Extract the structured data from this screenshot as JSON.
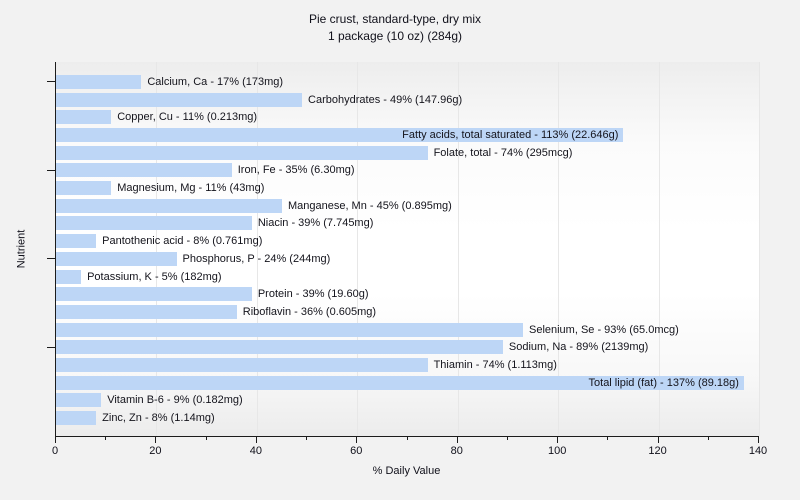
{
  "title": {
    "line1": "Pie crust, standard-type, dry mix",
    "line2": "1 package (10 oz) (284g)"
  },
  "chart_data": {
    "type": "bar",
    "orientation": "horizontal",
    "title": "Pie crust, standard-type, dry mix",
    "subtitle": "1 package (10 oz) (284g)",
    "xlabel": "% Daily Value",
    "ylabel": "Nutrient",
    "xlim": [
      0,
      140
    ],
    "x_major_ticks": [
      0,
      20,
      40,
      60,
      80,
      100,
      120,
      140
    ],
    "x_minor_ticks": [
      10,
      30,
      50,
      70,
      90,
      110,
      130
    ],
    "grid": "vertical-major",
    "legend": "none",
    "bar_color": "#bdd6f6",
    "label_inside_threshold_percent": 100,
    "y_major_tick_rows": [
      0,
      5,
      10,
      15
    ],
    "bars": [
      {
        "nutrient": "Calcium, Ca",
        "percent": 17,
        "amount": "173mg",
        "label": "Calcium, Ca - 17% (173mg)"
      },
      {
        "nutrient": "Carbohydrates",
        "percent": 49,
        "amount": "147.96g",
        "label": "Carbohydrates - 49% (147.96g)"
      },
      {
        "nutrient": "Copper, Cu",
        "percent": 11,
        "amount": "0.213mg",
        "label": "Copper, Cu - 11% (0.213mg)"
      },
      {
        "nutrient": "Fatty acids, total saturated",
        "percent": 113,
        "amount": "22.646g",
        "label": "Fatty acids, total saturated - 113% (22.646g)"
      },
      {
        "nutrient": "Folate, total",
        "percent": 74,
        "amount": "295mcg",
        "label": "Folate, total - 74% (295mcg)"
      },
      {
        "nutrient": "Iron, Fe",
        "percent": 35,
        "amount": "6.30mg",
        "label": "Iron, Fe - 35% (6.30mg)"
      },
      {
        "nutrient": "Magnesium, Mg",
        "percent": 11,
        "amount": "43mg",
        "label": "Magnesium, Mg - 11% (43mg)"
      },
      {
        "nutrient": "Manganese, Mn",
        "percent": 45,
        "amount": "0.895mg",
        "label": "Manganese, Mn - 45% (0.895mg)"
      },
      {
        "nutrient": "Niacin",
        "percent": 39,
        "amount": "7.745mg",
        "label": "Niacin - 39% (7.745mg)"
      },
      {
        "nutrient": "Pantothenic acid",
        "percent": 8,
        "amount": "0.761mg",
        "label": "Pantothenic acid - 8% (0.761mg)"
      },
      {
        "nutrient": "Phosphorus, P",
        "percent": 24,
        "amount": "244mg",
        "label": "Phosphorus, P - 24% (244mg)"
      },
      {
        "nutrient": "Potassium, K",
        "percent": 5,
        "amount": "182mg",
        "label": "Potassium, K - 5% (182mg)"
      },
      {
        "nutrient": "Protein",
        "percent": 39,
        "amount": "19.60g",
        "label": "Protein - 39% (19.60g)"
      },
      {
        "nutrient": "Riboflavin",
        "percent": 36,
        "amount": "0.605mg",
        "label": "Riboflavin - 36% (0.605mg)"
      },
      {
        "nutrient": "Selenium, Se",
        "percent": 93,
        "amount": "65.0mcg",
        "label": "Selenium, Se - 93% (65.0mcg)"
      },
      {
        "nutrient": "Sodium, Na",
        "percent": 89,
        "amount": "2139mg",
        "label": "Sodium, Na - 89% (2139mg)"
      },
      {
        "nutrient": "Thiamin",
        "percent": 74,
        "amount": "1.113mg",
        "label": "Thiamin - 74% (1.113mg)"
      },
      {
        "nutrient": "Total lipid (fat)",
        "percent": 137,
        "amount": "89.18g",
        "label": "Total lipid (fat) - 137% (89.18g)"
      },
      {
        "nutrient": "Vitamin B-6",
        "percent": 9,
        "amount": "0.182mg",
        "label": "Vitamin B-6 - 9% (0.182mg)"
      },
      {
        "nutrient": "Zinc, Zn",
        "percent": 8,
        "amount": "1.14mg",
        "label": "Zinc, Zn - 8% (1.14mg)"
      }
    ]
  }
}
